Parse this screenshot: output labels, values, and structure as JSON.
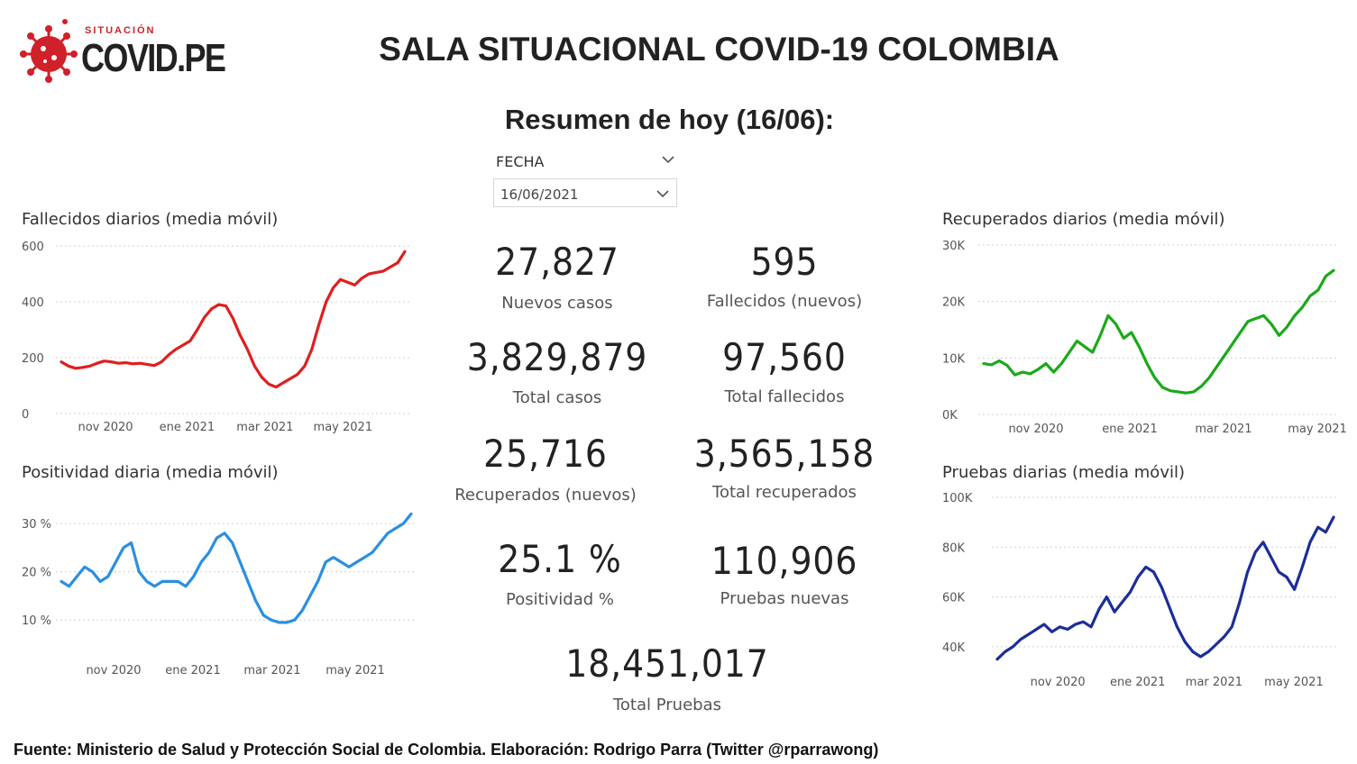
{
  "header": {
    "logo_small": "SITUACIÓN",
    "logo_big": "COVID.PE",
    "title": "SALA SITUACIONAL COVID-19 COLOMBIA",
    "summary_title": "Resumen de hoy (16/06):"
  },
  "filter": {
    "label": "FECHA",
    "value": "16/06/2021"
  },
  "kpis": [
    {
      "value": "27,827",
      "label": "Nuevos casos"
    },
    {
      "value": "595",
      "label": "Fallecidos (nuevos)"
    },
    {
      "value": "3,829,879",
      "label": "Total casos"
    },
    {
      "value": "97,560",
      "label": "Total fallecidos"
    },
    {
      "value": "25,716",
      "label": "Recuperados (nuevos)"
    },
    {
      "value": "3,565,158",
      "label": "Total recuperados"
    },
    {
      "value": "25.1 %",
      "label": "Positividad %"
    },
    {
      "value": "110,906",
      "label": "Pruebas nuevas"
    },
    {
      "value": "18,451,017",
      "label": "Total Pruebas"
    }
  ],
  "chart_data": [
    {
      "type": "line",
      "title": "Fallecidos diarios (media móvil)",
      "color": "#e01e1e",
      "x_ticks": [
        "nov 2020",
        "ene 2021",
        "mar 2021",
        "may 2021"
      ],
      "y_ticks": [
        "0",
        "200",
        "400",
        "600"
      ],
      "ylim": [
        0,
        600
      ],
      "series": [
        {
          "values": [
            185,
            170,
            162,
            165,
            170,
            180,
            188,
            185,
            180,
            182,
            178,
            180,
            176,
            172,
            185,
            210,
            230,
            245,
            260,
            300,
            345,
            375,
            390,
            385,
            340,
            280,
            230,
            170,
            130,
            105,
            95,
            110,
            125,
            140,
            170,
            230,
            320,
            400,
            450,
            480,
            470,
            460,
            485,
            500,
            505,
            510,
            525,
            540,
            580
          ]
        }
      ]
    },
    {
      "type": "line",
      "title": "Recuperados diarios (media móvil)",
      "color": "#19a919",
      "x_ticks": [
        "nov 2020",
        "ene 2021",
        "mar 2021",
        "may 2021"
      ],
      "y_ticks": [
        "0K",
        "10K",
        "20K",
        "30K"
      ],
      "ylim": [
        0,
        30000
      ],
      "series": [
        {
          "values": [
            9000,
            8800,
            9500,
            8700,
            7000,
            7500,
            7200,
            8000,
            9000,
            7500,
            9000,
            11000,
            13000,
            12000,
            11000,
            14000,
            17500,
            16000,
            13500,
            14500,
            12000,
            9000,
            6500,
            4800,
            4200,
            4000,
            3800,
            4000,
            5000,
            6500,
            8500,
            10500,
            12500,
            14500,
            16500,
            17000,
            17500,
            16000,
            14000,
            15500,
            17500,
            19000,
            21000,
            22000,
            24500,
            25500
          ]
        }
      ]
    },
    {
      "type": "line",
      "title": "Positividad diaria (media móvil)",
      "color": "#2a8fe0",
      "x_ticks": [
        "nov 2020",
        "ene 2021",
        "mar 2021",
        "may 2021"
      ],
      "y_ticks": [
        "10 %",
        "20 %",
        "30 %"
      ],
      "ylim": [
        5,
        33
      ],
      "series": [
        {
          "values": [
            18,
            17,
            19,
            21,
            20,
            18,
            19,
            22,
            25,
            26,
            20,
            18,
            17,
            18,
            18,
            18,
            17,
            19,
            22,
            24,
            27,
            28,
            26,
            22,
            18,
            14,
            11,
            10,
            9.5,
            9.5,
            10,
            12,
            15,
            18,
            22,
            23,
            22,
            21,
            22,
            23,
            24,
            26,
            28,
            29,
            30,
            32
          ]
        }
      ]
    },
    {
      "type": "line",
      "title": "Pruebas diarias (media móvil)",
      "color": "#1b2e98",
      "x_ticks": [
        "nov 2020",
        "ene 2021",
        "mar 2021",
        "may 2021"
      ],
      "y_ticks": [
        "40K",
        "60K",
        "80K",
        "100K"
      ],
      "ylim": [
        32000,
        100000
      ],
      "series": [
        {
          "values": [
            35000,
            38000,
            40000,
            43000,
            45000,
            47000,
            49000,
            46000,
            48000,
            47000,
            49000,
            50000,
            48000,
            55000,
            60000,
            54000,
            58000,
            62000,
            68000,
            72000,
            70000,
            64000,
            56000,
            48000,
            42000,
            38000,
            36000,
            38000,
            41000,
            44000,
            48000,
            58000,
            70000,
            78000,
            82000,
            76000,
            70000,
            68000,
            63000,
            72000,
            82000,
            88000,
            86000,
            92000
          ]
        }
      ]
    }
  ],
  "footer": "Fuente: Ministerio de Salud y Protección Social de Colombia. Elaboración: Rodrigo Parra (Twitter @rparrawong)"
}
